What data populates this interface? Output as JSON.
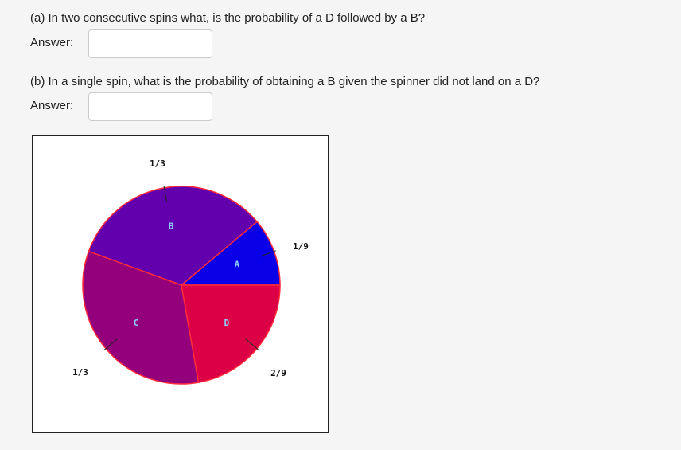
{
  "questions": [
    {
      "text": "(a) In two consecutive spins what, is the probability of a D followed by a B?",
      "answer_label": "Answer:"
    },
    {
      "text": "(b) In a single spin, what is the probability of obtaining a B given the spinner did not land on a D?",
      "answer_label": "Answer:"
    }
  ],
  "spinner": {
    "sectors": [
      {
        "letter": "A",
        "label": "1/9",
        "value": 0.1111,
        "color": "#0a00e8"
      },
      {
        "letter": "B",
        "label": "1/3",
        "value": 0.3333,
        "color": "#6200ae"
      },
      {
        "letter": "C",
        "label": "1/3",
        "value": 0.3333,
        "color": "#94007c"
      },
      {
        "letter": "D",
        "label": "2/9",
        "value": 0.2222,
        "color": "#dc0046"
      }
    ]
  }
}
